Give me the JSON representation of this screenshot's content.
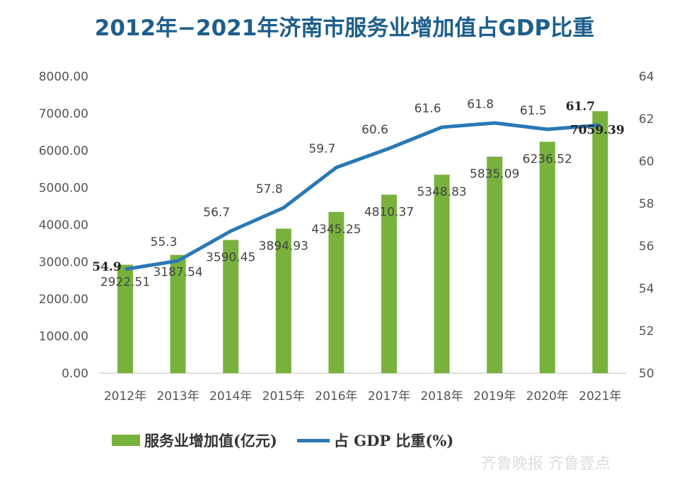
{
  "title": "2012年−2021年济南市服务业增加值占GDP比重",
  "watermark": "齐鲁晚报 齐鲁壹点",
  "chart_data": {
    "type": "bar+line",
    "title": "2012年−2021年济南市服务业增加值占GDP比重",
    "categories": [
      "2012年",
      "2013年",
      "2014年",
      "2015年",
      "2016年",
      "2017年",
      "2018年",
      "2019年",
      "2020年",
      "2021年"
    ],
    "series": [
      {
        "name": "服务业增加值(亿元)",
        "type": "bar",
        "axis": "left",
        "color": "#78b23d",
        "values": [
          2922.51,
          3187.54,
          3590.45,
          3894.93,
          4345.25,
          4810.37,
          5348.83,
          5835.09,
          6236.52,
          7059.39
        ],
        "labels": [
          "2922.51",
          "3187.54",
          "3590.45",
          "3894.93",
          "4345.25",
          "4810.37",
          "5348.83",
          "5835.09",
          "6236.52",
          "7059.39"
        ]
      },
      {
        "name": "占 GDP 比重(%)",
        "type": "line",
        "axis": "right",
        "color": "#2a78b5",
        "values": [
          54.9,
          55.3,
          56.7,
          57.8,
          59.7,
          60.6,
          61.6,
          61.8,
          61.5,
          61.7
        ],
        "labels": [
          "54.9",
          "55.3",
          "56.7",
          "57.8",
          "59.7",
          "60.6",
          "61.6",
          "61.8",
          "61.5",
          "61.7"
        ]
      }
    ],
    "left_axis": {
      "ylim": [
        0,
        8000
      ],
      "ticks": [
        "0.00",
        "1000.00",
        "2000.00",
        "3000.00",
        "4000.00",
        "5000.00",
        "6000.00",
        "7000.00",
        "8000.00"
      ]
    },
    "right_axis": {
      "ylim": [
        50,
        64
      ],
      "ticks": [
        "50",
        "52",
        "54",
        "56",
        "58",
        "60",
        "62",
        "64"
      ]
    },
    "grid": false,
    "legend": "bottom"
  }
}
